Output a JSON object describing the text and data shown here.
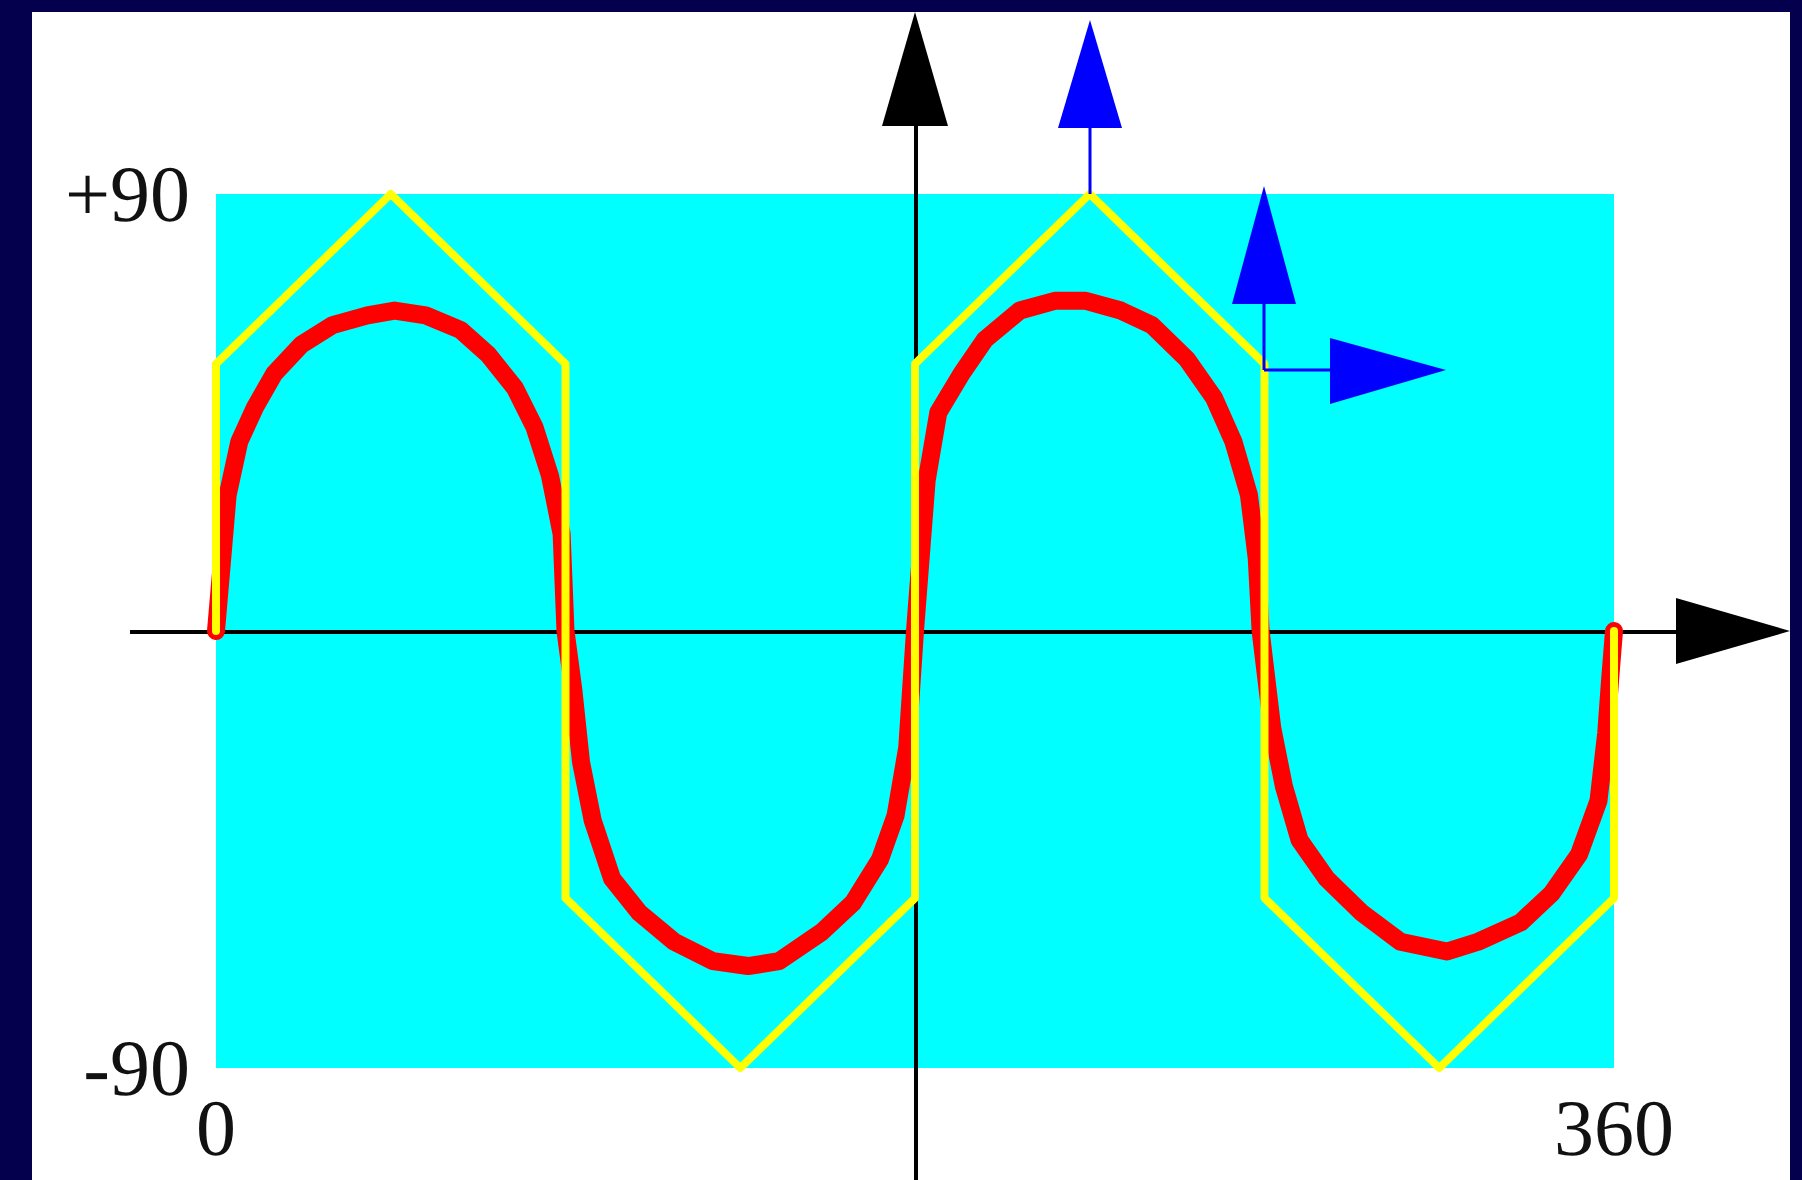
{
  "chart_data": {
    "type": "line",
    "xlim": [
      0,
      360
    ],
    "xticks": [
      0,
      360
    ],
    "ylim": [
      -90,
      90
    ],
    "yticks": [
      -90,
      {
        "value": 90,
        "label": "+90"
      }
    ],
    "marker": "none",
    "line_style": "solid",
    "series": [
      {
        "color": "#ff0000",
        "x": [
          0,
          3,
          6,
          10,
          15,
          22,
          30,
          39,
          46,
          54,
          63,
          70,
          77,
          82,
          86,
          89,
          90,
          92,
          94,
          97,
          102,
          109,
          118,
          128,
          137,
          145,
          156,
          164,
          171,
          175,
          178,
          180,
          183,
          186,
          192,
          198,
          207,
          216,
          224,
          233,
          241,
          250,
          257,
          262,
          266,
          268,
          269,
          272,
          275,
          279,
          286,
          295,
          305,
          317,
          325,
          336,
          344,
          351,
          356,
          358,
          359,
          360
        ],
        "values": [
          0,
          28,
          39,
          46,
          53,
          59,
          63,
          65,
          66,
          65,
          62,
          57,
          50,
          42,
          32,
          20,
          0,
          -12,
          -27,
          -39,
          -51,
          -58,
          -64,
          -68,
          -69,
          -68,
          -62,
          -56,
          -47,
          -38,
          -24,
          0,
          31,
          45,
          53,
          60,
          66,
          68,
          68,
          66,
          63,
          56,
          48,
          39,
          28,
          15,
          0,
          -20,
          -32,
          -43,
          -51,
          -58,
          -64,
          -66,
          -64,
          -60,
          -54,
          -46,
          -35,
          -21,
          -10,
          0
        ]
      },
      {
        "color": "#ffff00",
        "x": [
          0,
          0,
          45,
          90,
          90,
          135,
          180,
          180,
          225,
          270,
          270,
          315,
          360,
          360
        ],
        "values": [
          0,
          55,
          90,
          55,
          -55,
          -90,
          -55,
          55,
          90,
          55,
          -55,
          -90,
          -55,
          0
        ]
      }
    ],
    "ref_lines": [
      {
        "axis": "y",
        "value": 0,
        "color": "#000000"
      },
      {
        "axis": "x",
        "value": 180,
        "color": "#000000"
      }
    ]
  }
}
